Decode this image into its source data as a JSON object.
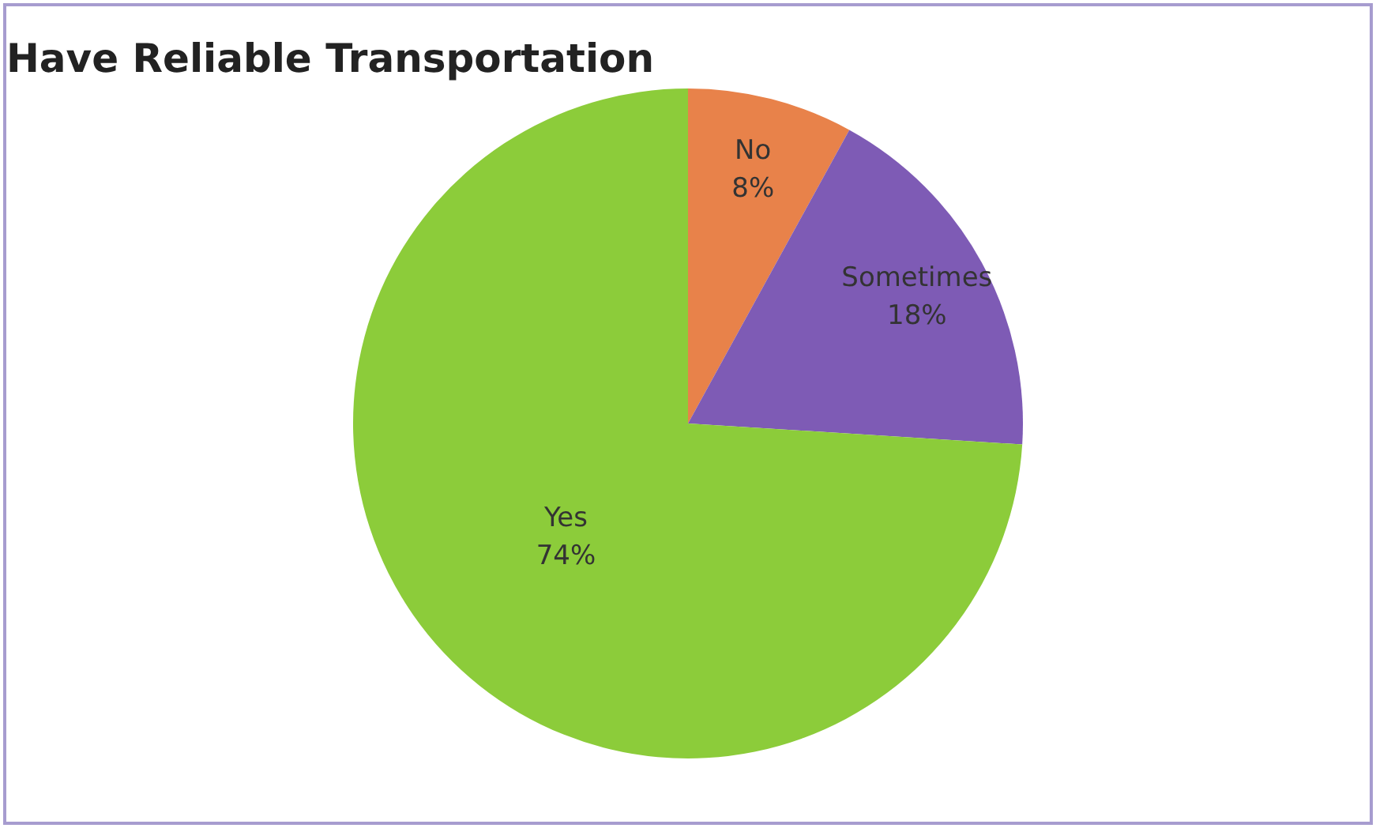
{
  "chart_data": {
    "type": "pie",
    "title": "Have Reliable Transportation",
    "categories": [
      "No",
      "Sometimes",
      "Yes"
    ],
    "values": [
      8,
      18,
      74
    ],
    "colors": [
      "#e8824a",
      "#7e5bb5",
      "#8ccc3a"
    ],
    "value_labels": [
      "8%",
      "18%",
      "74%"
    ],
    "legend": false
  }
}
